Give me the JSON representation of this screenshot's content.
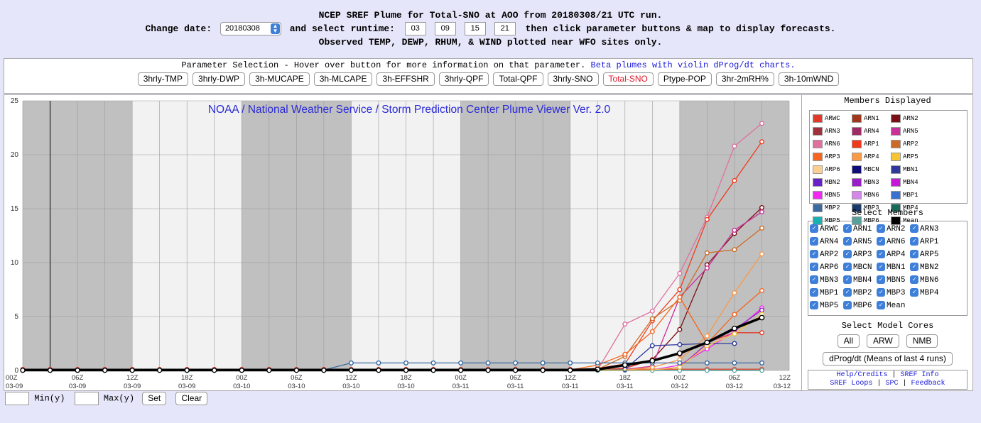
{
  "header": {
    "line1": "NCEP SREF Plume for Total-SNO at AOO from 20180308/21 UTC run.",
    "change_date_label": "Change date:",
    "date_value": "20180308",
    "select_runtime_label": "and select runtime:",
    "runtimes": [
      "03",
      "09",
      "15",
      "21"
    ],
    "after_runtime": "then click parameter buttons & map to display forecasts.",
    "line3": "Observed TEMP, DEWP, RHUM, & WIND plotted near WFO sites only."
  },
  "params": {
    "title": "Parameter Selection - Hover over button for more information on that parameter.",
    "link": "Beta plumes with violin dProg/dt charts.",
    "buttons": [
      "3hrly-TMP",
      "3hrly-DWP",
      "3h-MUCAPE",
      "3h-MLCAPE",
      "3h-EFFSHR",
      "3hrly-QPF",
      "Total-QPF",
      "3hrly-SNO",
      "Total-SNO",
      "Ptype-POP",
      "3hr-2mRH%",
      "3h-10mWND"
    ],
    "active": "Total-SNO"
  },
  "side": {
    "members_displayed_title": "Members Displayed",
    "legend": [
      {
        "name": "ARWC",
        "color": "#e23a2a"
      },
      {
        "name": "ARN1",
        "color": "#a0361a"
      },
      {
        "name": "ARN2",
        "color": "#7a0f14"
      },
      {
        "name": "ARN3",
        "color": "#a0303c"
      },
      {
        "name": "ARN4",
        "color": "#a02a66"
      },
      {
        "name": "ARN5",
        "color": "#cc2e9a"
      },
      {
        "name": "ARN6",
        "color": "#e0709f"
      },
      {
        "name": "ARP1",
        "color": "#f03a1c"
      },
      {
        "name": "ARP2",
        "color": "#cc6b25"
      },
      {
        "name": "ARP3",
        "color": "#f7651e"
      },
      {
        "name": "ARP4",
        "color": "#f89a48"
      },
      {
        "name": "ARP5",
        "color": "#f6c533"
      },
      {
        "name": "ARP6",
        "color": "#fbd08f"
      },
      {
        "name": "MBCN",
        "color": "#0e0e7a"
      },
      {
        "name": "MBN1",
        "color": "#2d3a9c"
      },
      {
        "name": "MBN2",
        "color": "#6a20c8"
      },
      {
        "name": "MBN3",
        "color": "#9a1ec8"
      },
      {
        "name": "MBN4",
        "color": "#c618d8"
      },
      {
        "name": "MBN5",
        "color": "#f228f2"
      },
      {
        "name": "MBN6",
        "color": "#d488e8"
      },
      {
        "name": "MBP1",
        "color": "#3a70d0"
      },
      {
        "name": "MBP2",
        "color": "#3a6aa0"
      },
      {
        "name": "MBP3",
        "color": "#1a3a6a"
      },
      {
        "name": "MBP4",
        "color": "#1a6a5a"
      },
      {
        "name": "MBP5",
        "color": "#1ab0b0"
      },
      {
        "name": "MBP6",
        "color": "#5aa09a"
      },
      {
        "name": "Mean",
        "color": "#000000"
      }
    ],
    "select_members_title": "Select Members",
    "members": [
      "ARWC",
      "ARN1",
      "ARN2",
      "ARN3",
      "ARN4",
      "ARN5",
      "ARN6",
      "ARP1",
      "ARP2",
      "ARP3",
      "ARP4",
      "ARP5",
      "ARP6",
      "MBCN",
      "MBN1",
      "MBN2",
      "MBN3",
      "MBN4",
      "MBN5",
      "MBN6",
      "MBP1",
      "MBP2",
      "MBP3",
      "MBP4",
      "MBP5",
      "MBP6",
      "Mean"
    ],
    "select_cores_title": "Select Model Cores",
    "cores": [
      "All",
      "ARW",
      "NMB"
    ],
    "dprog_button": "dProg/dt (Means of last 4 runs)",
    "links": {
      "help": "Help/Credits",
      "sref_info": "SREF Info",
      "sref_loops": "SREF Loops",
      "spc": "SPC",
      "feedback": "Feedback",
      "sep": "|"
    }
  },
  "bottom": {
    "min_label": "Min(y)",
    "max_label": "Max(y)",
    "set": "Set",
    "clear": "Clear"
  },
  "chart_data": {
    "type": "line",
    "title": "NOAA / National Weather Service / Storm Prediction Center Plume Viewer Ver. 2.0",
    "ylim": [
      0,
      25
    ],
    "yticks": [
      0,
      5,
      10,
      15,
      20,
      25
    ],
    "x_labels": [
      {
        "hour": "00Z",
        "date": "03-09"
      },
      {
        "hour": "06Z",
        "date": "03-09"
      },
      {
        "hour": "12Z",
        "date": "03-09"
      },
      {
        "hour": "18Z",
        "date": "03-09"
      },
      {
        "hour": "00Z",
        "date": "03-10"
      },
      {
        "hour": "06Z",
        "date": "03-10"
      },
      {
        "hour": "12Z",
        "date": "03-10"
      },
      {
        "hour": "18Z",
        "date": "03-10"
      },
      {
        "hour": "00Z",
        "date": "03-11"
      },
      {
        "hour": "06Z",
        "date": "03-11"
      },
      {
        "hour": "12Z",
        "date": "03-11"
      },
      {
        "hour": "18Z",
        "date": "03-11"
      },
      {
        "hour": "00Z",
        "date": "03-12"
      },
      {
        "hour": "06Z",
        "date": "03-12"
      },
      {
        "hour": "12Z",
        "date": "03-12"
      }
    ],
    "run_marker_hour": 3,
    "grid": true,
    "series": [
      {
        "name": "ARN6",
        "color": "#e0709f",
        "values": [
          {
            "h": 66,
            "v": 4.3
          },
          {
            "h": 69,
            "v": 5.5
          },
          {
            "h": 72,
            "v": 9.0
          },
          {
            "h": 75,
            "v": 14.2
          },
          {
            "h": 78,
            "v": 20.8
          },
          {
            "h": 81,
            "v": 22.9
          }
        ]
      },
      {
        "name": "ARP1",
        "color": "#f03a1c",
        "values": [
          {
            "h": 63,
            "v": 0.2
          },
          {
            "h": 66,
            "v": 0.6
          },
          {
            "h": 69,
            "v": 4.6
          },
          {
            "h": 72,
            "v": 7.5
          },
          {
            "h": 75,
            "v": 14.0
          },
          {
            "h": 78,
            "v": 17.6
          },
          {
            "h": 81,
            "v": 21.2
          }
        ]
      },
      {
        "name": "ARN2",
        "color": "#7a0f14",
        "values": [
          {
            "h": 66,
            "v": 0.2
          },
          {
            "h": 69,
            "v": 1.0
          },
          {
            "h": 72,
            "v": 3.8
          },
          {
            "h": 75,
            "v": 9.8
          },
          {
            "h": 78,
            "v": 12.7
          },
          {
            "h": 81,
            "v": 15.1
          }
        ]
      },
      {
        "name": "ARN5",
        "color": "#cc2e9a",
        "values": [
          {
            "h": 66,
            "v": 0.1
          },
          {
            "h": 69,
            "v": 0.4
          },
          {
            "h": 72,
            "v": 6.8
          },
          {
            "h": 75,
            "v": 9.5
          },
          {
            "h": 78,
            "v": 13.0
          },
          {
            "h": 81,
            "v": 14.7
          }
        ]
      },
      {
        "name": "ARP2",
        "color": "#cc6b25",
        "values": [
          {
            "h": 63,
            "v": 0.1
          },
          {
            "h": 66,
            "v": 1.3
          },
          {
            "h": 69,
            "v": 4.8
          },
          {
            "h": 72,
            "v": 6.5
          },
          {
            "h": 75,
            "v": 10.9
          },
          {
            "h": 78,
            "v": 11.2
          },
          {
            "h": 81,
            "v": 13.2
          }
        ]
      },
      {
        "name": "ARP4",
        "color": "#f89a48",
        "values": [
          {
            "h": 69,
            "v": 0.3
          },
          {
            "h": 72,
            "v": 1.0
          },
          {
            "h": 75,
            "v": 3.2
          },
          {
            "h": 78,
            "v": 7.2
          },
          {
            "h": 81,
            "v": 10.8
          }
        ]
      },
      {
        "name": "ARP3",
        "color": "#f7651e",
        "values": [
          {
            "h": 63,
            "v": 0.5
          },
          {
            "h": 66,
            "v": 1.5
          },
          {
            "h": 69,
            "v": 3.6
          },
          {
            "h": 72,
            "v": 6.8
          },
          {
            "h": 75,
            "v": 2.5
          },
          {
            "h": 78,
            "v": 5.2
          },
          {
            "h": 81,
            "v": 7.4
          }
        ]
      },
      {
        "name": "ARWC",
        "color": "#e23a2a",
        "values": [
          {
            "h": 66,
            "v": 0.2
          },
          {
            "h": 69,
            "v": 1.0
          },
          {
            "h": 72,
            "v": 1.5
          },
          {
            "h": 75,
            "v": 2.6
          },
          {
            "h": 78,
            "v": 3.5
          },
          {
            "h": 81,
            "v": 3.5
          }
        ]
      },
      {
        "name": "MBN5",
        "color": "#f228f2",
        "values": [
          {
            "h": 72,
            "v": 0.5
          },
          {
            "h": 75,
            "v": 2.0
          },
          {
            "h": 78,
            "v": 3.6
          },
          {
            "h": 81,
            "v": 5.8
          }
        ]
      },
      {
        "name": "MBN3",
        "color": "#9a1ec8",
        "values": [
          {
            "h": 72,
            "v": 0.3
          },
          {
            "h": 75,
            "v": 2.5
          },
          {
            "h": 78,
            "v": 3.8
          },
          {
            "h": 81,
            "v": 5.6
          }
        ]
      },
      {
        "name": "MBN1",
        "color": "#2d3a9c",
        "values": [
          {
            "h": 66,
            "v": 0.1
          },
          {
            "h": 69,
            "v": 2.3
          },
          {
            "h": 72,
            "v": 2.4
          },
          {
            "h": 75,
            "v": 2.5
          },
          {
            "h": 78,
            "v": 2.5
          }
        ]
      },
      {
        "name": "ARP5",
        "color": "#f6c533",
        "values": [
          {
            "h": 72,
            "v": 0.3
          },
          {
            "h": 75,
            "v": 2.3
          },
          {
            "h": 78,
            "v": 3.4
          },
          {
            "h": 81,
            "v": 5.2
          }
        ]
      },
      {
        "name": "MBP2",
        "color": "#3a6aa0",
        "values": [
          {
            "h": 36,
            "v": 0.7
          },
          {
            "h": 39,
            "v": 0.7
          },
          {
            "h": 42,
            "v": 0.7
          },
          {
            "h": 45,
            "v": 0.7
          },
          {
            "h": 48,
            "v": 0.7
          },
          {
            "h": 51,
            "v": 0.7
          },
          {
            "h": 54,
            "v": 0.7
          },
          {
            "h": 57,
            "v": 0.7
          },
          {
            "h": 60,
            "v": 0.7
          },
          {
            "h": 63,
            "v": 0.7
          },
          {
            "h": 66,
            "v": 0.7
          },
          {
            "h": 69,
            "v": 0.7
          },
          {
            "h": 72,
            "v": 0.7
          },
          {
            "h": 75,
            "v": 0.7
          },
          {
            "h": 78,
            "v": 0.7
          },
          {
            "h": 81,
            "v": 0.7
          }
        ]
      },
      {
        "name": "Mean",
        "color": "#000000",
        "values": [
          {
            "h": 63,
            "v": 0.1
          },
          {
            "h": 66,
            "v": 0.5
          },
          {
            "h": 69,
            "v": 0.9
          },
          {
            "h": 72,
            "v": 1.6
          },
          {
            "h": 75,
            "v": 2.6
          },
          {
            "h": 78,
            "v": 3.9
          },
          {
            "h": 81,
            "v": 4.9
          }
        ]
      }
    ]
  }
}
